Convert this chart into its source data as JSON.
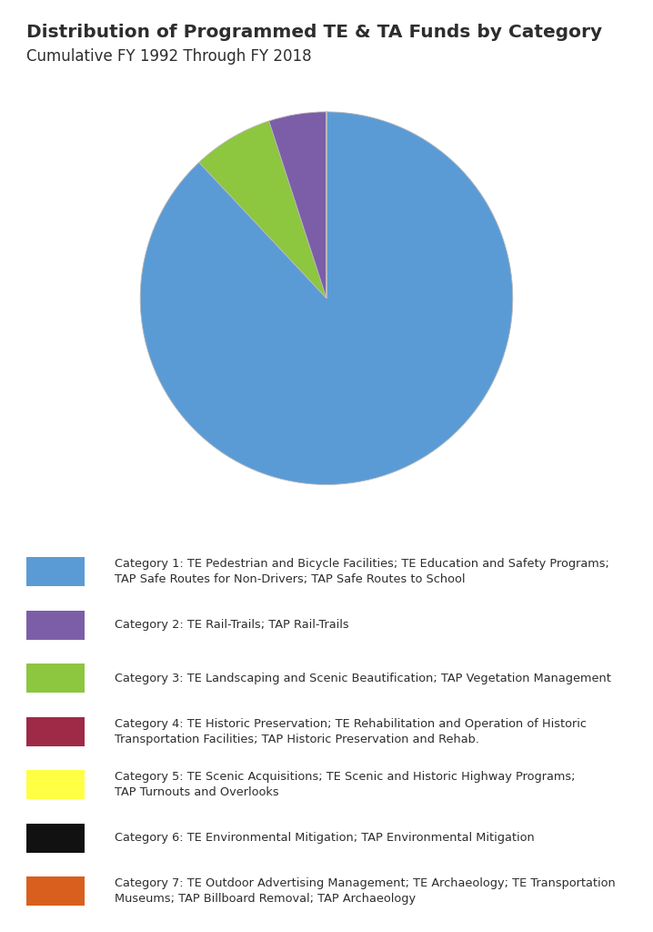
{
  "title": "Distribution of Programmed TE & TA Funds by Category",
  "subtitle": "Cumulative FY 1992 Through FY 2018",
  "title_fontsize": 14.5,
  "subtitle_fontsize": 12,
  "background_color": "#ffffff",
  "pie_values": [
    88.0,
    7.0,
    5.0,
    1e-05,
    1e-05,
    1e-05,
    1e-05
  ],
  "pie_colors": [
    "#5b9bd5",
    "#8dc63f",
    "#7b5ea7",
    "#9e2a47",
    "#ffff44",
    "#111111",
    "#d95f1e"
  ],
  "pie_startangle": 90,
  "legend_items": [
    {
      "color": "#5b9bd5",
      "label": "Category 1: TE Pedestrian and Bicycle Facilities; TE Education and Safety Programs;\nTAP Safe Routes for Non-Drivers; TAP Safe Routes to School"
    },
    {
      "color": "#7b5ea7",
      "label": "Category 2: TE Rail-Trails; TAP Rail-Trails"
    },
    {
      "color": "#8dc63f",
      "label": "Category 3: TE Landscaping and Scenic Beautification; TAP Vegetation Management"
    },
    {
      "color": "#9e2a47",
      "label": "Category 4: TE Historic Preservation; TE Rehabilitation and Operation of Historic\nTransportation Facilities; TAP Historic Preservation and Rehab."
    },
    {
      "color": "#ffff44",
      "label": "Category 5: TE Scenic Acquisitions; TE Scenic and Historic Highway Programs;\nTAP Turnouts and Overlooks"
    },
    {
      "color": "#111111",
      "label": "Category 6: TE Environmental Mitigation; TAP Environmental Mitigation"
    },
    {
      "color": "#d95f1e",
      "label": "Category 7: TE Outdoor Advertising Management; TE Archaeology; TE Transportation\nMuseums; TAP Billboard Removal; TAP Archaeology"
    }
  ]
}
